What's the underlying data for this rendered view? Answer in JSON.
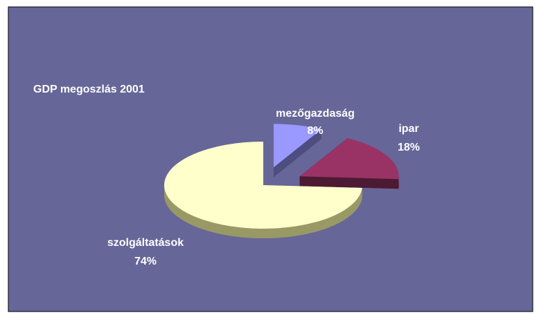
{
  "chart_data": {
    "type": "pie",
    "title": "GDP megoszlás 2001",
    "categories": [
      "mezőgazdaság",
      "ipar",
      "szolgáltatások"
    ],
    "values": [
      8,
      18,
      74
    ],
    "value_labels": [
      "8%",
      "18%",
      "74%"
    ],
    "colors": [
      "#9999ff",
      "#993366",
      "#ffffcc"
    ],
    "side_colors": [
      "#4d4d80",
      "#4d1a33",
      "#999966"
    ]
  }
}
